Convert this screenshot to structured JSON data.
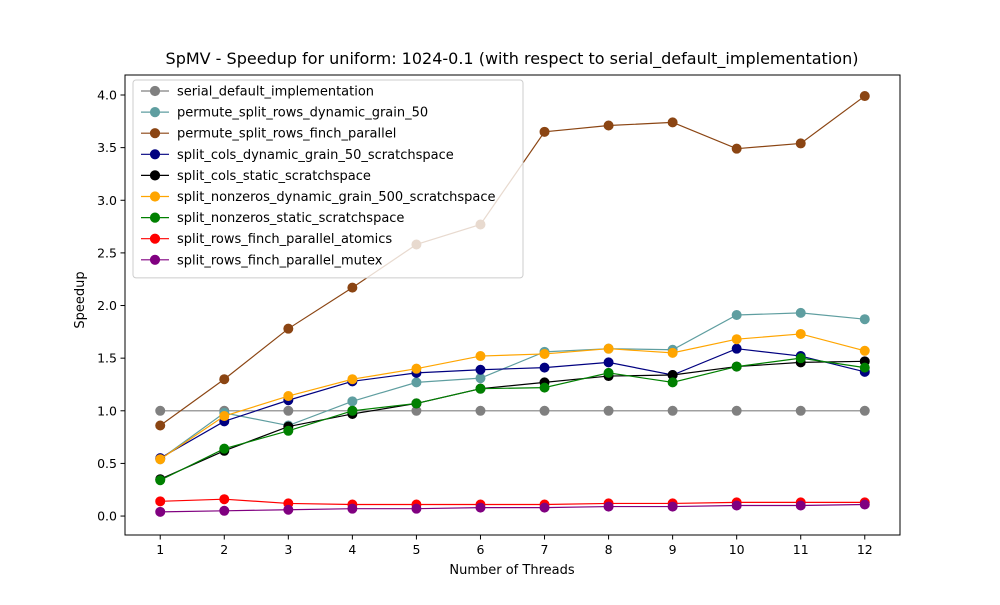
{
  "chart_data": {
    "type": "line",
    "title": "SpMV - Speedup for uniform: 1024-0.1 (with respect to serial_default_implementation)",
    "xlabel": "Number of Threads",
    "ylabel": "Speedup",
    "xlim": [
      0.45,
      12.55
    ],
    "ylim": [
      -0.18,
      4.19
    ],
    "xticks": [
      "1",
      "2",
      "3",
      "4",
      "5",
      "6",
      "7",
      "8",
      "9",
      "10",
      "11",
      "12"
    ],
    "yticks": [
      "0.0",
      "0.5",
      "1.0",
      "1.5",
      "2.0",
      "2.5",
      "3.0",
      "3.5",
      "4.0"
    ],
    "grid": false,
    "legend_position": "upper-left",
    "x": [
      1,
      2,
      3,
      4,
      5,
      6,
      7,
      8,
      9,
      10,
      11,
      12
    ],
    "series": [
      {
        "name": "serial_default_implementation",
        "color": "#808080",
        "values": [
          1.0,
          1.0,
          1.0,
          1.0,
          1.0,
          1.0,
          1.0,
          1.0,
          1.0,
          1.0,
          1.0,
          1.0
        ]
      },
      {
        "name": "permute_split_rows_dynamic_grain_50",
        "color": "#5f9ea0",
        "values": [
          0.54,
          0.98,
          0.86,
          1.09,
          1.27,
          1.31,
          1.56,
          1.59,
          1.58,
          1.91,
          1.93,
          1.87
        ]
      },
      {
        "name": "permute_split_rows_finch_parallel",
        "color": "#8b4513",
        "values": [
          0.86,
          1.3,
          1.78,
          2.17,
          2.58,
          2.77,
          3.65,
          3.71,
          3.74,
          3.49,
          3.54,
          3.99
        ]
      },
      {
        "name": "split_cols_dynamic_grain_50_scratchspace",
        "color": "#000080",
        "values": [
          0.55,
          0.9,
          1.1,
          1.28,
          1.36,
          1.39,
          1.41,
          1.46,
          1.34,
          1.59,
          1.52,
          1.37
        ]
      },
      {
        "name": "split_cols_static_scratchspace",
        "color": "#000000",
        "values": [
          0.35,
          0.62,
          0.85,
          0.97,
          1.07,
          1.21,
          1.27,
          1.33,
          1.34,
          1.42,
          1.46,
          1.47
        ]
      },
      {
        "name": "split_nonzeros_dynamic_grain_500_scratchspace",
        "color": "#ffa500",
        "values": [
          0.54,
          0.95,
          1.14,
          1.3,
          1.4,
          1.52,
          1.54,
          1.59,
          1.55,
          1.68,
          1.73,
          1.57
        ]
      },
      {
        "name": "split_nonzeros_static_scratchspace",
        "color": "#008000",
        "values": [
          0.34,
          0.64,
          0.81,
          1.0,
          1.07,
          1.21,
          1.22,
          1.36,
          1.27,
          1.42,
          1.5,
          1.41
        ]
      },
      {
        "name": "split_rows_finch_parallel_atomics",
        "color": "#ff0000",
        "values": [
          0.14,
          0.16,
          0.12,
          0.11,
          0.11,
          0.11,
          0.11,
          0.12,
          0.12,
          0.13,
          0.13,
          0.13
        ]
      },
      {
        "name": "split_rows_finch_parallel_mutex",
        "color": "#800080",
        "values": [
          0.04,
          0.05,
          0.06,
          0.07,
          0.07,
          0.08,
          0.08,
          0.09,
          0.09,
          0.1,
          0.1,
          0.11
        ]
      }
    ]
  }
}
